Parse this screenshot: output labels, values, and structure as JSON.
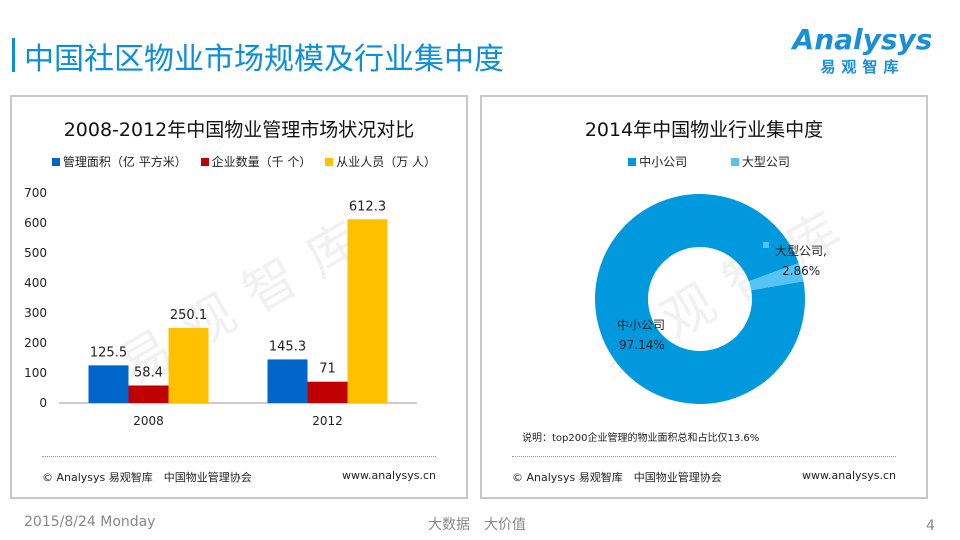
{
  "header": {
    "title": "中国社区物业市场规模及行业集中度",
    "logo_text": "Analysys",
    "logo_sub": "易观智库"
  },
  "watermark": "易观智库",
  "chart_data": [
    {
      "type": "bar",
      "title": "2008-2012年中国物业管理市场状况对比",
      "categories": [
        "2008",
        "2012"
      ],
      "series": [
        {
          "name": "管理面积（亿 平方米）",
          "color": "#0066cc",
          "values": [
            125.5,
            145.3
          ]
        },
        {
          "name": "企业数量（千 个）",
          "color": "#c00000",
          "values": [
            58.4,
            71
          ]
        },
        {
          "name": "从业人员（万 人）",
          "color": "#ffc000",
          "values": [
            250.1,
            612.3
          ]
        }
      ],
      "ylim": [
        0,
        700
      ],
      "yticks": [
        0,
        100,
        200,
        300,
        400,
        500,
        600,
        700
      ],
      "xlabel": "",
      "ylabel": ""
    },
    {
      "type": "pie",
      "title": "2014年中国物业行业集中度",
      "donut": true,
      "slices": [
        {
          "label": "中小公司",
          "value": 97.14,
          "display": "97.14%",
          "color": "#0099dd"
        },
        {
          "label": "大型公司",
          "value": 2.86,
          "display": "2.86%",
          "color": "#55c3f5"
        }
      ],
      "legend": [
        "中小公司",
        "大型公司"
      ],
      "note": "说明：top200企业管理的物业面积总和占比仅13.6%"
    }
  ],
  "footer": {
    "source": "© Analysys 易观智库　中国物业管理协会",
    "url": "www.analysys.cn"
  },
  "bottom": {
    "date": "2015/8/24 Monday",
    "slogan": "大数据　大价值",
    "page": "4"
  }
}
